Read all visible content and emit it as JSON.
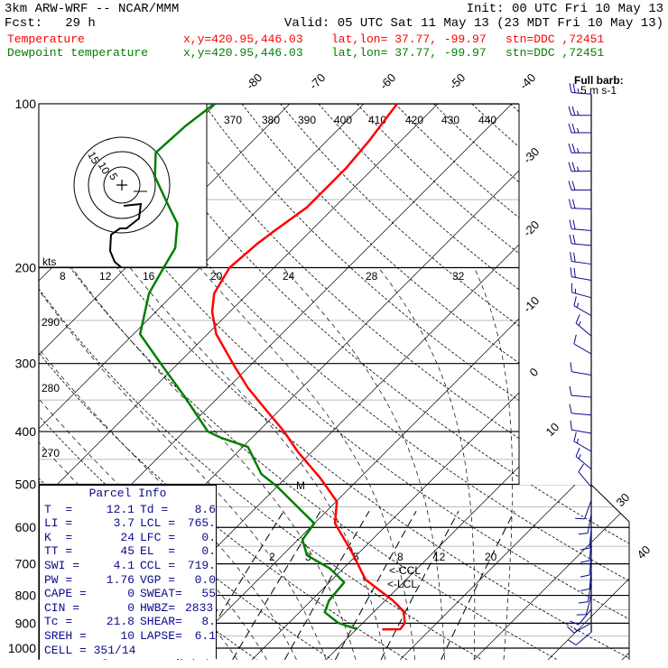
{
  "header": {
    "model": "3km ARW-WRF -- NCAR/MMM",
    "init": "Init: 00 UTC Fri 10 May 13",
    "fcst": "Fcst:   29 h",
    "valid": "Valid: 05 UTC Sat 11 May 13 (23 MDT Fri 10 May 13)"
  },
  "legend": [
    {
      "name": "Temperature",
      "xy": "x,y=420.95,446.03",
      "latlon": "lat,lon= 37.77, -99.97",
      "stn": "stn=DDC ,72451",
      "color": "#ff0000"
    },
    {
      "name": "Dewpoint temperature",
      "xy": "x,y=420.95,446.03",
      "latlon": "lat,lon= 37.77, -99.97",
      "stn": "stn=DDC ,72451",
      "color": "#007f00"
    }
  ],
  "parcel": {
    "title": "Parcel Info",
    "rows": [
      [
        "T  =",
        "12.1",
        "Td =",
        "8.6"
      ],
      [
        "LI =",
        "3.7",
        "LCL =",
        "765."
      ],
      [
        "K  =",
        "24",
        "LFC =",
        "0."
      ],
      [
        "TT =",
        "45",
        "EL  =",
        "0."
      ],
      [
        "SWI =",
        "4.1",
        "CCL =",
        "719."
      ],
      [
        "PW =",
        "1.76",
        "VGP =",
        "0.0"
      ],
      [
        "CAPE =",
        "0",
        "SWEAT=",
        "55"
      ],
      [
        "CIN =",
        "0",
        "HWBZ=",
        "2833."
      ],
      [
        "Tc =",
        "21.8",
        "SHEAR=",
        "8."
      ],
      [
        "SREH =",
        "10",
        "LAPSE=",
        "6.1"
      ]
    ],
    "cell": "CELL = 351/14"
  },
  "chart_data": {
    "type": "skew-t log-p",
    "pressure_labels": [
      "100",
      "200",
      "300",
      "400",
      "500",
      "600",
      "700",
      "800",
      "900",
      "1000"
    ],
    "pressure_levels": [
      100,
      200,
      300,
      400,
      500,
      600,
      700,
      800,
      900,
      1000
    ],
    "minor_levels": [
      150,
      250,
      350,
      450,
      550,
      650,
      750,
      850,
      950
    ],
    "isotherm_labels_top": [
      "-80",
      "-70",
      "-60",
      "-50",
      "-40"
    ],
    "isotherm_labels_right": [
      "-30",
      "-20",
      "-10",
      "0",
      "10",
      "30",
      "40"
    ],
    "isentrope_labels_top": [
      "370",
      "380",
      "390",
      "400",
      "410",
      "420",
      "430",
      "440"
    ],
    "isentrope_labels_left": [
      "290",
      "280",
      "270"
    ],
    "row200_labels": [
      "8",
      "12",
      "16",
      "20",
      "24",
      "28",
      "32"
    ],
    "mixing_ratio_labels": [
      "2",
      "3",
      "5",
      "8",
      "12",
      "20"
    ],
    "mixing_ratios": [
      2,
      3,
      5,
      8,
      12,
      20
    ],
    "annotations": {
      "ccl": "<-CCL",
      "lcl": "<-LCL",
      "marker": "M",
      "hodo_units": "kts",
      "barb_note": "Full barb:",
      "barb_units": "5 m s-1"
    },
    "hodo_rings": [
      "5",
      "10",
      "15"
    ],
    "hodograph_uv_kts": [
      [
        0.5,
        -5.75
      ],
      [
        5.25,
        -5.25
      ],
      [
        4.75,
        -9.25
      ],
      [
        1.25,
        -12
      ],
      [
        -0.5,
        -12
      ],
      [
        -3,
        -13.75
      ],
      [
        -3.25,
        -18.25
      ],
      [
        -2,
        -21.25
      ],
      [
        -0.25,
        -22.75
      ]
    ],
    "temperature": [
      [
        100,
        -55.5
      ],
      [
        116.5,
        -54.3
      ],
      [
        131,
        -53.7
      ],
      [
        144,
        -53.7
      ],
      [
        155,
        -53.7
      ],
      [
        171,
        -54.9
      ],
      [
        181,
        -55.5
      ],
      [
        200,
        -56
      ],
      [
        223,
        -54.6
      ],
      [
        241,
        -52.4
      ],
      [
        265,
        -48.8
      ],
      [
        303,
        -42.1
      ],
      [
        333,
        -37.2
      ],
      [
        366,
        -31.7
      ],
      [
        400,
        -26.5
      ],
      [
        435,
        -22
      ],
      [
        488,
        -15.2
      ],
      [
        538,
        -9.9
      ],
      [
        590,
        -7.2
      ],
      [
        667,
        -1
      ],
      [
        748,
        4.5
      ],
      [
        817,
        11
      ],
      [
        855,
        13.9
      ],
      [
        899,
        15.7
      ],
      [
        923,
        15.9
      ],
      [
        924,
        13.5
      ]
    ],
    "dewpoint": [
      [
        100,
        -80.2
      ],
      [
        110,
        -81.1
      ],
      [
        123,
        -81.5
      ],
      [
        136,
        -78.4
      ],
      [
        152,
        -73.2
      ],
      [
        166,
        -69
      ],
      [
        184,
        -66
      ],
      [
        200,
        -64.9
      ],
      [
        223,
        -63.4
      ],
      [
        265,
        -59.1
      ],
      [
        303,
        -51.8
      ],
      [
        346,
        -44.5
      ],
      [
        400,
        -36.8
      ],
      [
        411,
        -34.1
      ],
      [
        427,
        -29.3
      ],
      [
        479,
        -23.8
      ],
      [
        504,
        -20.1
      ],
      [
        551,
        -14.4
      ],
      [
        590,
        -10
      ],
      [
        632,
        -9.4
      ],
      [
        675,
        -6.7
      ],
      [
        714,
        -1.8
      ],
      [
        757,
        2
      ],
      [
        817,
        2.4
      ],
      [
        859,
        3.4
      ],
      [
        899,
        6.7
      ],
      [
        923,
        10.1
      ]
    ],
    "winds_p_dir_ms": [
      [
        96,
        275,
        12.5
      ],
      [
        105,
        270,
        12.5
      ],
      [
        113,
        270,
        12.5
      ],
      [
        123,
        270,
        12.5
      ],
      [
        133,
        270,
        12.5
      ],
      [
        144,
        270,
        10
      ],
      [
        156,
        272,
        10
      ],
      [
        171,
        275,
        10
      ],
      [
        182,
        275,
        10
      ],
      [
        197,
        278,
        10
      ],
      [
        211,
        280,
        10
      ],
      [
        227,
        285,
        7.5
      ],
      [
        245,
        300,
        7.5
      ],
      [
        267,
        310,
        7.5
      ],
      [
        288,
        300,
        5
      ],
      [
        315,
        280,
        5
      ],
      [
        346,
        275,
        5
      ],
      [
        373,
        275,
        5
      ],
      [
        403,
        280,
        5
      ],
      [
        435,
        300,
        7.5
      ],
      [
        469,
        310,
        7.5
      ],
      [
        506,
        320,
        5
      ],
      [
        535,
        200,
        5
      ],
      [
        566,
        190,
        5
      ],
      [
        602,
        185,
        5
      ],
      [
        635,
        185,
        5
      ],
      [
        675,
        185,
        5
      ],
      [
        716,
        185,
        5
      ],
      [
        757,
        190,
        5
      ],
      [
        800,
        195,
        5
      ],
      [
        849,
        220,
        5
      ],
      [
        899,
        240,
        7.5
      ],
      [
        935,
        230,
        5
      ]
    ],
    "colors": {
      "temperature": "#ff0000",
      "dewpoint": "#007f00",
      "wind": "#0a0a8c"
    }
  }
}
